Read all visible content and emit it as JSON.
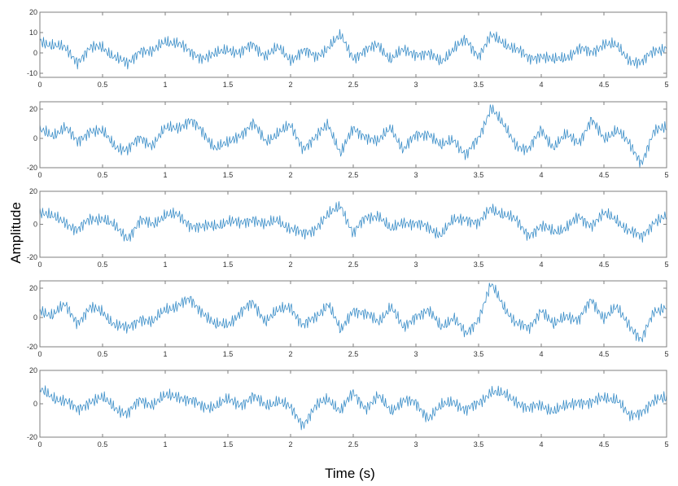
{
  "figure": {
    "xlabel": "Time (s)",
    "ylabel": "Amplitude"
  },
  "colors": {
    "trace": "#3b8ec8",
    "axes": "#7f7f7f",
    "background": "#ffffff"
  },
  "chart_data": [
    {
      "type": "line",
      "xlim": [
        0,
        5
      ],
      "ylim": [
        -12,
        20
      ],
      "xticks": [
        0,
        0.5,
        1,
        1.5,
        2,
        2.5,
        3,
        3.5,
        4,
        4.5,
        5
      ],
      "yticks": [
        -10,
        0,
        10,
        20
      ],
      "ytick_labels": [
        "-10",
        "0",
        "10",
        "20"
      ],
      "grid": false,
      "series": [
        {
          "x": [
            0,
            0.1,
            0.2,
            0.3,
            0.4,
            0.5,
            0.6,
            0.7,
            0.8,
            0.9,
            1.0,
            1.1,
            1.2,
            1.3,
            1.4,
            1.5,
            1.6,
            1.7,
            1.8,
            1.9,
            2.0,
            2.1,
            2.2,
            2.3,
            2.4,
            2.5,
            2.6,
            2.7,
            2.8,
            2.9,
            3.0,
            3.1,
            3.2,
            3.3,
            3.4,
            3.5,
            3.6,
            3.7,
            3.8,
            3.9,
            4.0,
            4.1,
            4.2,
            4.3,
            4.4,
            4.5,
            4.6,
            4.7,
            4.8,
            4.9,
            5.0
          ],
          "y": [
            6,
            4,
            2,
            -4,
            2,
            3,
            -2,
            -6,
            2,
            0,
            6,
            5,
            0,
            -2,
            -1,
            2,
            0,
            4,
            -1,
            2,
            -3,
            1,
            -2,
            3,
            8,
            -2,
            1,
            4,
            -3,
            1,
            0,
            -1,
            -4,
            2,
            6,
            -1,
            8,
            5,
            2,
            -3,
            -1,
            -4,
            -2,
            2,
            0,
            5,
            3,
            -3,
            -5,
            1,
            3
          ]
        }
      ]
    },
    {
      "type": "line",
      "xlim": [
        0,
        5
      ],
      "ylim": [
        -20,
        25
      ],
      "xticks": [
        0,
        0.5,
        1,
        1.5,
        2,
        2.5,
        3,
        3.5,
        4,
        4.5,
        5
      ],
      "yticks": [
        -20,
        0,
        20
      ],
      "ytick_labels": [
        "-20",
        "0",
        "20"
      ],
      "grid": false,
      "series": [
        {
          "x": [
            0,
            0.1,
            0.2,
            0.3,
            0.4,
            0.5,
            0.6,
            0.7,
            0.8,
            0.9,
            1.0,
            1.1,
            1.2,
            1.3,
            1.4,
            1.5,
            1.6,
            1.7,
            1.8,
            1.9,
            2.0,
            2.1,
            2.2,
            2.3,
            2.4,
            2.5,
            2.6,
            2.7,
            2.8,
            2.9,
            3.0,
            3.1,
            3.2,
            3.3,
            3.4,
            3.5,
            3.6,
            3.7,
            3.8,
            3.9,
            4.0,
            4.1,
            4.2,
            4.3,
            4.4,
            4.5,
            4.6,
            4.7,
            4.8,
            4.9,
            5.0
          ],
          "y": [
            5,
            2,
            8,
            -3,
            6,
            4,
            -5,
            -8,
            0,
            -4,
            6,
            8,
            12,
            4,
            -6,
            -4,
            3,
            10,
            -2,
            4,
            8,
            -6,
            0,
            10,
            -10,
            6,
            2,
            -3,
            8,
            -8,
            2,
            4,
            -6,
            0,
            -12,
            0,
            22,
            8,
            -4,
            -8,
            6,
            -6,
            2,
            -2,
            12,
            0,
            6,
            -4,
            -16,
            4,
            8
          ]
        }
      ]
    },
    {
      "type": "line",
      "xlim": [
        0,
        5
      ],
      "ylim": [
        -20,
        20
      ],
      "xticks": [
        0,
        0.5,
        1,
        1.5,
        2,
        2.5,
        3,
        3.5,
        4,
        4.5,
        5
      ],
      "yticks": [
        -20,
        0,
        20
      ],
      "ytick_labels": [
        "-20",
        "0",
        "20"
      ],
      "grid": false,
      "series": [
        {
          "x": [
            0,
            0.1,
            0.2,
            0.3,
            0.4,
            0.5,
            0.6,
            0.7,
            0.8,
            0.9,
            1.0,
            1.1,
            1.2,
            1.3,
            1.4,
            1.5,
            1.6,
            1.7,
            1.8,
            1.9,
            2.0,
            2.1,
            2.2,
            2.3,
            2.4,
            2.5,
            2.6,
            2.7,
            2.8,
            2.9,
            3.0,
            3.1,
            3.2,
            3.3,
            3.4,
            3.5,
            3.6,
            3.7,
            3.8,
            3.9,
            4.0,
            4.1,
            4.2,
            4.3,
            4.4,
            4.5,
            4.6,
            4.7,
            4.8,
            4.9,
            5.0
          ],
          "y": [
            8,
            4,
            2,
            -4,
            3,
            4,
            -2,
            -8,
            2,
            0,
            6,
            5,
            0,
            -2,
            -1,
            2,
            0,
            4,
            -1,
            3,
            -3,
            -6,
            -2,
            5,
            12,
            -6,
            4,
            6,
            -4,
            2,
            0,
            -2,
            -6,
            2,
            4,
            0,
            10,
            6,
            2,
            -6,
            -2,
            -4,
            -2,
            4,
            0,
            6,
            3,
            -4,
            -8,
            2,
            4
          ]
        }
      ]
    },
    {
      "type": "line",
      "xlim": [
        0,
        5
      ],
      "ylim": [
        -20,
        25
      ],
      "xticks": [
        0,
        0.5,
        1,
        1.5,
        2,
        2.5,
        3,
        3.5,
        4,
        4.5,
        5
      ],
      "yticks": [
        -20,
        0,
        20
      ],
      "ytick_labels": [
        "-20",
        "0",
        "20"
      ],
      "grid": false,
      "series": [
        {
          "x": [
            0,
            0.1,
            0.2,
            0.3,
            0.4,
            0.5,
            0.6,
            0.7,
            0.8,
            0.9,
            1.0,
            1.1,
            1.2,
            1.3,
            1.4,
            1.5,
            1.6,
            1.7,
            1.8,
            1.9,
            2.0,
            2.1,
            2.2,
            2.3,
            2.4,
            2.5,
            2.6,
            2.7,
            2.8,
            2.9,
            3.0,
            3.1,
            3.2,
            3.3,
            3.4,
            3.5,
            3.6,
            3.7,
            3.8,
            3.9,
            4.0,
            4.1,
            4.2,
            4.3,
            4.4,
            4.5,
            4.6,
            4.7,
            4.8,
            4.9,
            5.0
          ],
          "y": [
            5,
            2,
            8,
            -3,
            6,
            4,
            -5,
            -8,
            0,
            -4,
            6,
            8,
            12,
            4,
            -6,
            -4,
            3,
            10,
            -2,
            4,
            8,
            -6,
            0,
            10,
            -10,
            6,
            2,
            -3,
            8,
            -8,
            2,
            4,
            -6,
            0,
            -12,
            0,
            22,
            8,
            -4,
            -8,
            6,
            -6,
            2,
            -2,
            12,
            0,
            6,
            -4,
            -16,
            4,
            8
          ]
        }
      ]
    },
    {
      "type": "line",
      "xlim": [
        0,
        5
      ],
      "ylim": [
        -20,
        20
      ],
      "xticks": [
        0,
        0.5,
        1,
        1.5,
        2,
        2.5,
        3,
        3.5,
        4,
        4.5,
        5
      ],
      "yticks": [
        -20,
        0,
        20
      ],
      "ytick_labels": [
        "-20",
        "0",
        "20"
      ],
      "grid": false,
      "series": [
        {
          "x": [
            0,
            0.1,
            0.2,
            0.3,
            0.4,
            0.5,
            0.6,
            0.7,
            0.8,
            0.9,
            1.0,
            1.1,
            1.2,
            1.3,
            1.4,
            1.5,
            1.6,
            1.7,
            1.8,
            1.9,
            2.0,
            2.1,
            2.2,
            2.3,
            2.4,
            2.5,
            2.6,
            2.7,
            2.8,
            2.9,
            3.0,
            3.1,
            3.2,
            3.3,
            3.4,
            3.5,
            3.6,
            3.7,
            3.8,
            3.9,
            4.0,
            4.1,
            4.2,
            4.3,
            4.4,
            4.5,
            4.6,
            4.7,
            4.8,
            4.9,
            5.0
          ],
          "y": [
            8,
            4,
            2,
            -4,
            2,
            3,
            -2,
            -6,
            2,
            0,
            4,
            5,
            2,
            -2,
            -1,
            2,
            0,
            4,
            -1,
            2,
            -3,
            -12,
            -2,
            3,
            -4,
            6,
            -2,
            4,
            -4,
            2,
            0,
            -8,
            -2,
            2,
            -4,
            0,
            8,
            5,
            2,
            -3,
            -1,
            -4,
            -2,
            2,
            0,
            4,
            3,
            -8,
            -4,
            1,
            4
          ]
        }
      ]
    }
  ]
}
